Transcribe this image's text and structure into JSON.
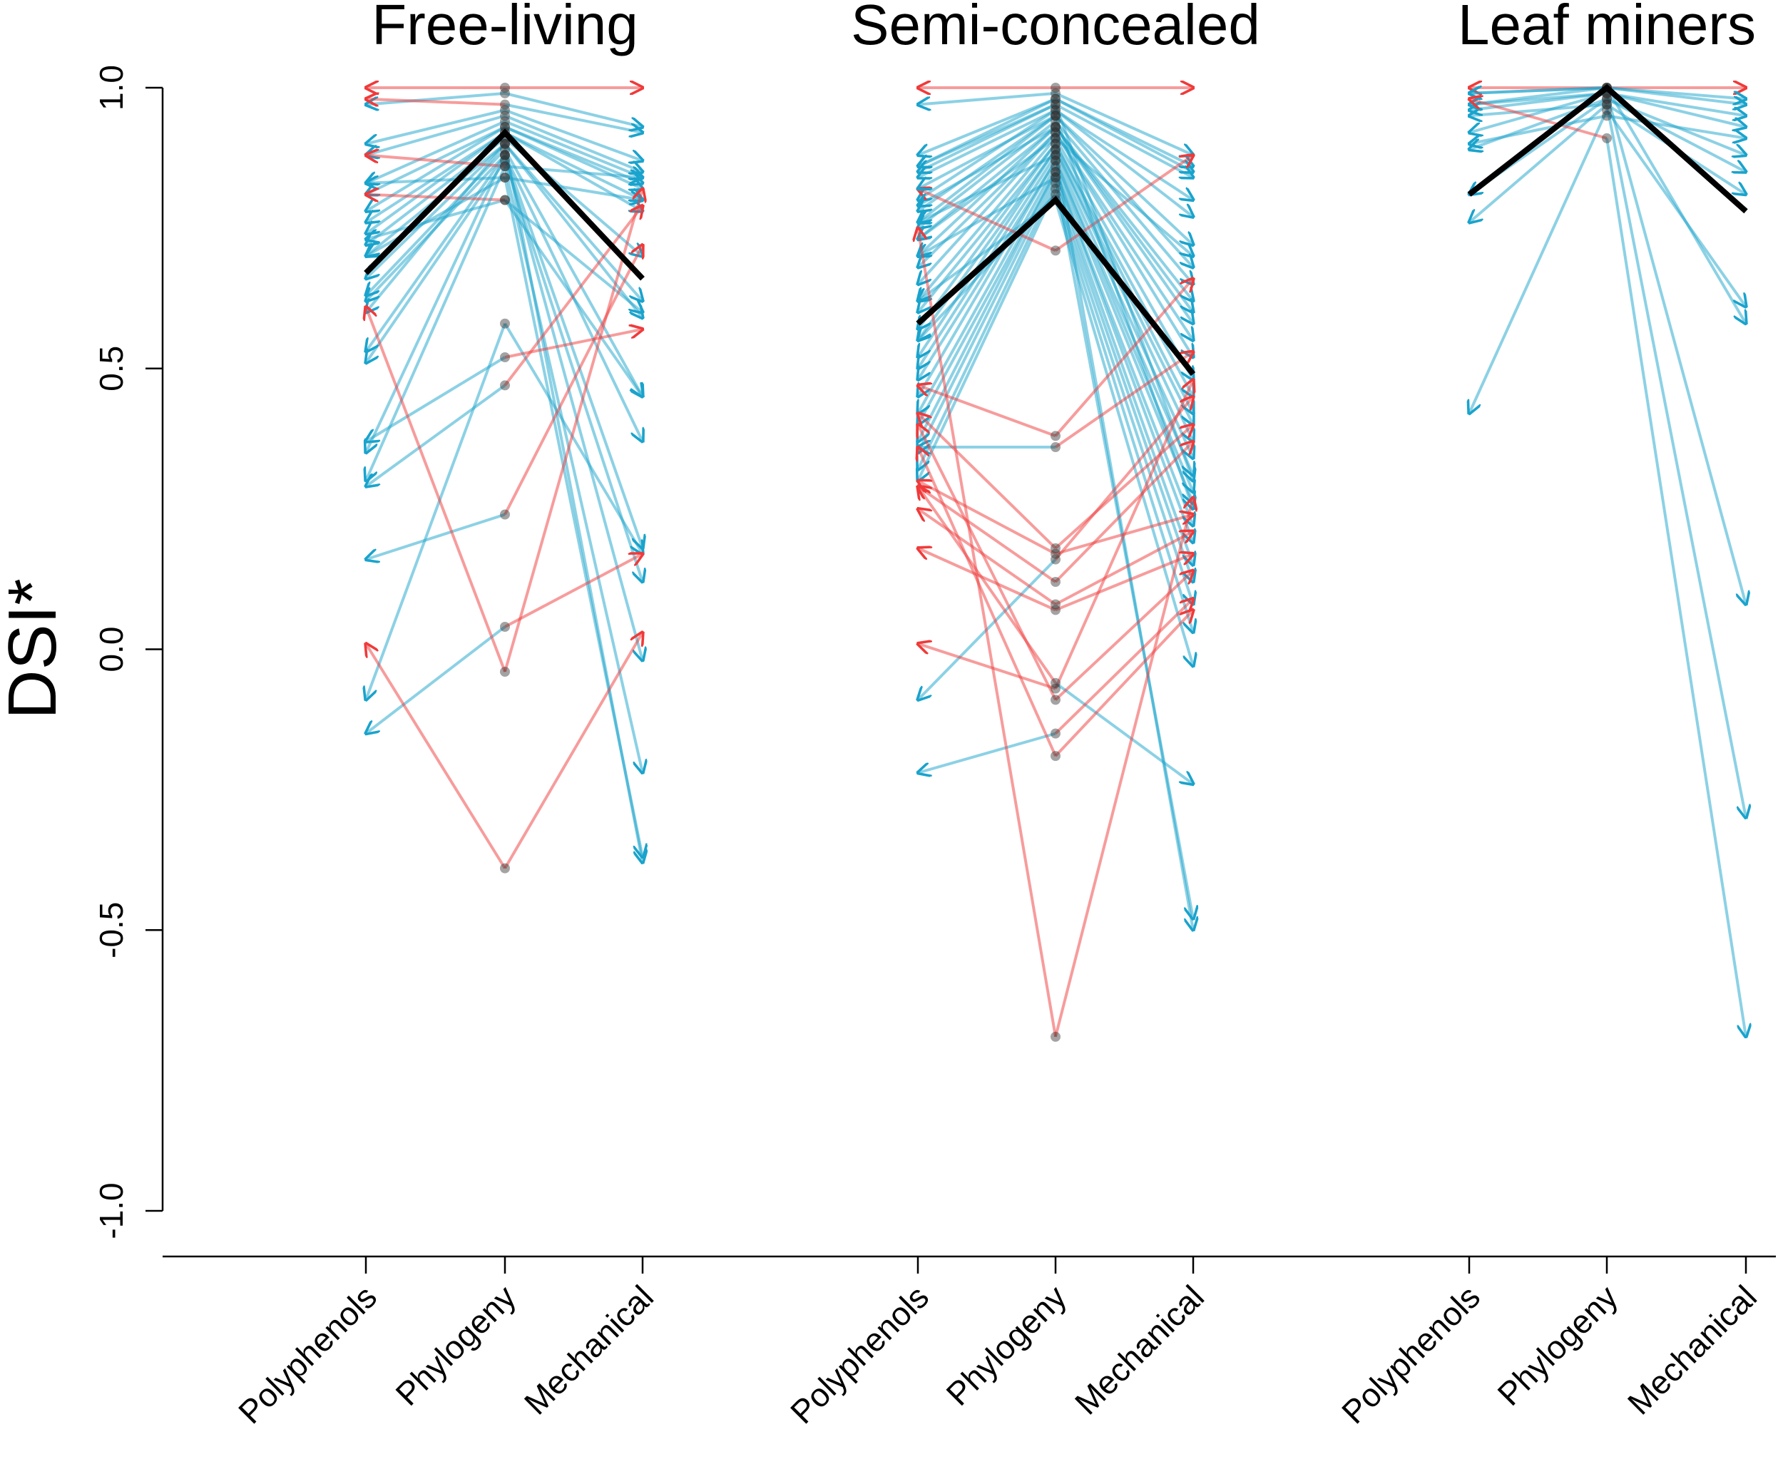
{
  "chart_data": {
    "type": "line",
    "ylabel": "DSI*",
    "ylim": [
      -1.0,
      1.0
    ],
    "yticks": [
      "-1.0",
      "-0.5",
      "0.0",
      "0.5",
      "1.0"
    ],
    "ytick_values": [
      -1.0,
      -0.5,
      0.0,
      0.5,
      1.0
    ],
    "categories": [
      "Polyphenols",
      "Phylogeny",
      "Mechanical"
    ],
    "colors": {
      "decrease": "#1aa3cc",
      "increase": "#f03a3a",
      "mean": "#000000",
      "point": "#333333"
    },
    "panels": [
      {
        "title": "Free-living",
        "mean": [
          0.67,
          0.92,
          0.66
        ],
        "series_format": "[phylogeny, polyphenols, mechanical]",
        "lines": [
          [
            1.0,
            1.0,
            1.0
          ],
          [
            0.99,
            0.97,
            0.93
          ],
          [
            0.97,
            0.98,
            0.92
          ],
          [
            0.96,
            0.9,
            0.87
          ],
          [
            0.95,
            0.88,
            0.85
          ],
          [
            0.94,
            0.83,
            0.84
          ],
          [
            0.93,
            0.81,
            0.83
          ],
          [
            0.93,
            0.78,
            0.82
          ],
          [
            0.92,
            0.76,
            0.8
          ],
          [
            0.92,
            0.74,
            0.78
          ],
          [
            0.91,
            0.72,
            0.7
          ],
          [
            0.9,
            0.7,
            0.62
          ],
          [
            0.9,
            0.66,
            0.59
          ],
          [
            0.89,
            0.63,
            0.45
          ],
          [
            0.88,
            0.62,
            0.37
          ],
          [
            0.88,
            0.53,
            0.18
          ],
          [
            0.87,
            0.51,
            0.12
          ],
          [
            0.86,
            0.88,
            0.84
          ],
          [
            0.84,
            0.83,
            0.8
          ],
          [
            0.8,
            0.73,
            0.6
          ],
          [
            0.8,
            0.81,
            0.45
          ],
          [
            0.88,
            0.35,
            -0.02
          ],
          [
            0.86,
            0.3,
            -0.22
          ],
          [
            0.84,
            0.7,
            -0.37
          ],
          [
            0.9,
            0.6,
            -0.38
          ],
          [
            0.58,
            -0.09,
            0.17
          ],
          [
            0.52,
            0.37,
            0.57
          ],
          [
            0.47,
            0.29,
            0.79
          ],
          [
            0.24,
            0.16,
            0.72
          ],
          [
            0.04,
            -0.15,
            0.17
          ],
          [
            -0.04,
            0.61,
            0.82
          ],
          [
            -0.39,
            0.01,
            0.03
          ]
        ]
      },
      {
        "title": "Semi-concealed",
        "mean": [
          0.58,
          0.8,
          0.49
        ],
        "series_format": "[phylogeny, polyphenols, mechanical]",
        "lines": [
          [
            1.0,
            1.0,
            1.0
          ],
          [
            0.99,
            0.97,
            0.88
          ],
          [
            0.98,
            0.88,
            0.86
          ],
          [
            0.98,
            0.86,
            0.85
          ],
          [
            0.97,
            0.85,
            0.84
          ],
          [
            0.96,
            0.84,
            0.8
          ],
          [
            0.96,
            0.8,
            0.77
          ],
          [
            0.95,
            0.78,
            0.72
          ],
          [
            0.95,
            0.76,
            0.68
          ],
          [
            0.94,
            0.75,
            0.65
          ],
          [
            0.93,
            0.73,
            0.62
          ],
          [
            0.93,
            0.7,
            0.58
          ],
          [
            0.92,
            0.68,
            0.55
          ],
          [
            0.92,
            0.65,
            0.52
          ],
          [
            0.91,
            0.62,
            0.48
          ],
          [
            0.9,
            0.6,
            0.45
          ],
          [
            0.9,
            0.57,
            0.42
          ],
          [
            0.89,
            0.55,
            0.4
          ],
          [
            0.89,
            0.52,
            0.37
          ],
          [
            0.88,
            0.5,
            0.34
          ],
          [
            0.87,
            0.48,
            0.31
          ],
          [
            0.87,
            0.45,
            0.28
          ],
          [
            0.86,
            0.42,
            0.26
          ],
          [
            0.85,
            0.4,
            0.22
          ],
          [
            0.85,
            0.37,
            0.19
          ],
          [
            0.84,
            0.35,
            0.15
          ],
          [
            0.83,
            0.32,
            0.12
          ],
          [
            0.82,
            0.3,
            0.08
          ],
          [
            0.81,
            0.55,
            0.03
          ],
          [
            0.8,
            0.62,
            -0.03
          ],
          [
            0.84,
            0.7,
            -0.48
          ],
          [
            0.88,
            0.76,
            -0.5
          ],
          [
            0.71,
            0.82,
            0.88
          ],
          [
            0.97,
            0.86,
            0.3
          ],
          [
            0.95,
            0.82,
            0.25
          ],
          [
            0.93,
            0.79,
            0.6
          ],
          [
            0.91,
            0.73,
            0.7
          ],
          [
            0.38,
            0.47,
            0.66
          ],
          [
            0.36,
            0.36,
            0.53
          ],
          [
            0.18,
            0.42,
            0.4
          ],
          [
            0.17,
            0.3,
            0.24
          ],
          [
            0.16,
            -0.09,
            0.45
          ],
          [
            0.12,
            0.29,
            0.37
          ],
          [
            0.08,
            0.25,
            0.21
          ],
          [
            0.07,
            0.18,
            0.17
          ],
          [
            -0.06,
            0.29,
            -0.24
          ],
          [
            -0.07,
            0.01,
            0.48
          ],
          [
            -0.09,
            0.4,
            0.14
          ],
          [
            -0.15,
            -0.22,
            0.09
          ],
          [
            -0.19,
            0.36,
            0.07
          ],
          [
            -0.69,
            0.75,
            0.27
          ]
        ]
      },
      {
        "title": "Leaf miners",
        "mean": [
          0.81,
          1.0,
          0.78
        ],
        "series_format": "[phylogeny, polyphenols, mechanical]",
        "lines": [
          [
            1.0,
            1.0,
            1.0
          ],
          [
            1.0,
            0.99,
            0.98
          ],
          [
            1.0,
            0.97,
            0.97
          ],
          [
            0.99,
            0.96,
            0.95
          ],
          [
            0.99,
            0.92,
            0.93
          ],
          [
            0.98,
            0.89,
            0.88
          ],
          [
            0.98,
            0.81,
            0.85
          ],
          [
            0.97,
            0.76,
            0.81
          ],
          [
            0.96,
            0.42,
            0.61
          ],
          [
            1.0,
            0.99,
            0.58
          ],
          [
            0.99,
            0.97,
            0.08
          ],
          [
            0.97,
            0.95,
            -0.3
          ],
          [
            0.91,
            0.98,
            -0.69
          ],
          [
            0.95,
            0.9,
            0.91
          ]
        ]
      }
    ]
  }
}
